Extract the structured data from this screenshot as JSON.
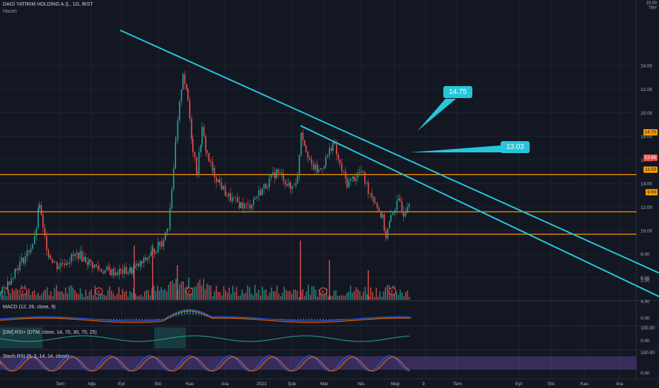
{
  "header": {
    "symbol": "DAGİ YATIRIM HOLDİNG A.Ş., 1G, BIST",
    "volume_label": "Hacim"
  },
  "currency": {
    "line1": "20.00",
    "line2": "TRY"
  },
  "panes": {
    "macd_label": "MACD (12, 26, close, 9)",
    "dmi_label": "[DM] RSI+ (DTM, close, 14, 70, 30, 75, 25)",
    "stoch_label": "Stoch RSI (3, 3, 14, 14, close)"
  },
  "callouts": {
    "upper": "14.75",
    "lower": "13.03"
  },
  "price_tags": {
    "last": "12.66",
    "level1": "14.75",
    "level2": "11.59",
    "level3": "9.69"
  },
  "colors": {
    "background": "#131722",
    "up": "#26a69a",
    "down": "#ef5350",
    "trendline": "#26c6da",
    "level": "#ff9800",
    "grid": "#1f2331"
  },
  "chart_data": {
    "type": "candlestick",
    "symbol": "DAGİ YATIRIM HOLDİNG A.Ş.",
    "interval": "1G",
    "ylim": [
      4,
      26
    ],
    "y_ticks": [
      "24.00",
      "22.00",
      "20.00",
      "18.00",
      "16.00",
      "14.00",
      "12.00",
      "10.00",
      "8.00",
      "6.00",
      "4.00",
      "2.00"
    ],
    "x_ticks": [
      "Tem",
      "Ağu",
      "Eyl",
      "Eki",
      "Kas",
      "Ara",
      "2021",
      "Şub",
      "Mar",
      "Nis",
      "May",
      "3",
      "Tem",
      "Eyl",
      "Eki",
      "Kas",
      "Ara"
    ],
    "horizontal_levels": [
      14.75,
      11.59,
      9.69
    ],
    "last_price": 12.66,
    "price_path": [
      [
        0,
        4.6
      ],
      [
        10,
        5.5
      ],
      [
        22,
        6.8
      ],
      [
        35,
        7.8
      ],
      [
        48,
        9.2
      ],
      [
        55,
        12.3
      ],
      [
        60,
        10.0
      ],
      [
        68,
        8.0
      ],
      [
        80,
        7.0
      ],
      [
        95,
        7.5
      ],
      [
        110,
        8.0
      ],
      [
        125,
        7.3
      ],
      [
        140,
        6.7
      ],
      [
        155,
        6.5
      ],
      [
        170,
        6.5
      ],
      [
        185,
        6.6
      ],
      [
        200,
        7.2
      ],
      [
        215,
        8.2
      ],
      [
        228,
        9.0
      ],
      [
        237,
        10.4
      ],
      [
        248,
        17.5
      ],
      [
        258,
        23.5
      ],
      [
        265,
        21.0
      ],
      [
        272,
        17.0
      ],
      [
        278,
        15.0
      ],
      [
        285,
        18.5
      ],
      [
        292,
        16.5
      ],
      [
        300,
        15.0
      ],
      [
        310,
        14.0
      ],
      [
        320,
        13.0
      ],
      [
        330,
        12.5
      ],
      [
        340,
        12.2
      ],
      [
        350,
        12.0
      ],
      [
        360,
        12.8
      ],
      [
        370,
        13.5
      ],
      [
        380,
        14.2
      ],
      [
        390,
        15.0
      ],
      [
        400,
        14.5
      ],
      [
        410,
        13.5
      ],
      [
        420,
        14.5
      ],
      [
        425,
        18.5
      ],
      [
        432,
        17.0
      ],
      [
        440,
        15.5
      ],
      [
        450,
        15.0
      ],
      [
        460,
        16.0
      ],
      [
        470,
        17.5
      ],
      [
        480,
        15.5
      ],
      [
        490,
        14.0
      ],
      [
        500,
        14.5
      ],
      [
        510,
        15.0
      ],
      [
        520,
        13.5
      ],
      [
        530,
        12.5
      ],
      [
        540,
        11.0
      ],
      [
        545,
        9.5
      ],
      [
        552,
        11.0
      ],
      [
        558,
        12.0
      ],
      [
        565,
        12.5
      ],
      [
        570,
        11.5
      ],
      [
        578,
        12.66
      ]
    ],
    "trendlines": [
      {
        "from": [
          170,
          27.0
        ],
        "to": [
          932,
          6.4
        ]
      },
      {
        "from": [
          425,
          18.9
        ],
        "to": [
          932,
          4.4
        ]
      }
    ],
    "volume_highlights": [
      {
        "x": 189,
        "v": 0.55
      },
      {
        "x": 215,
        "v": 0.55
      },
      {
        "x": 424,
        "v": 0.6
      },
      {
        "x": 465,
        "v": 0.4
      },
      {
        "x": 250,
        "v": 0.35
      },
      {
        "x": 520,
        "v": 0.3
      }
    ],
    "earnings_markers_x": [
      33,
      140,
      268,
      457,
      555
    ]
  }
}
